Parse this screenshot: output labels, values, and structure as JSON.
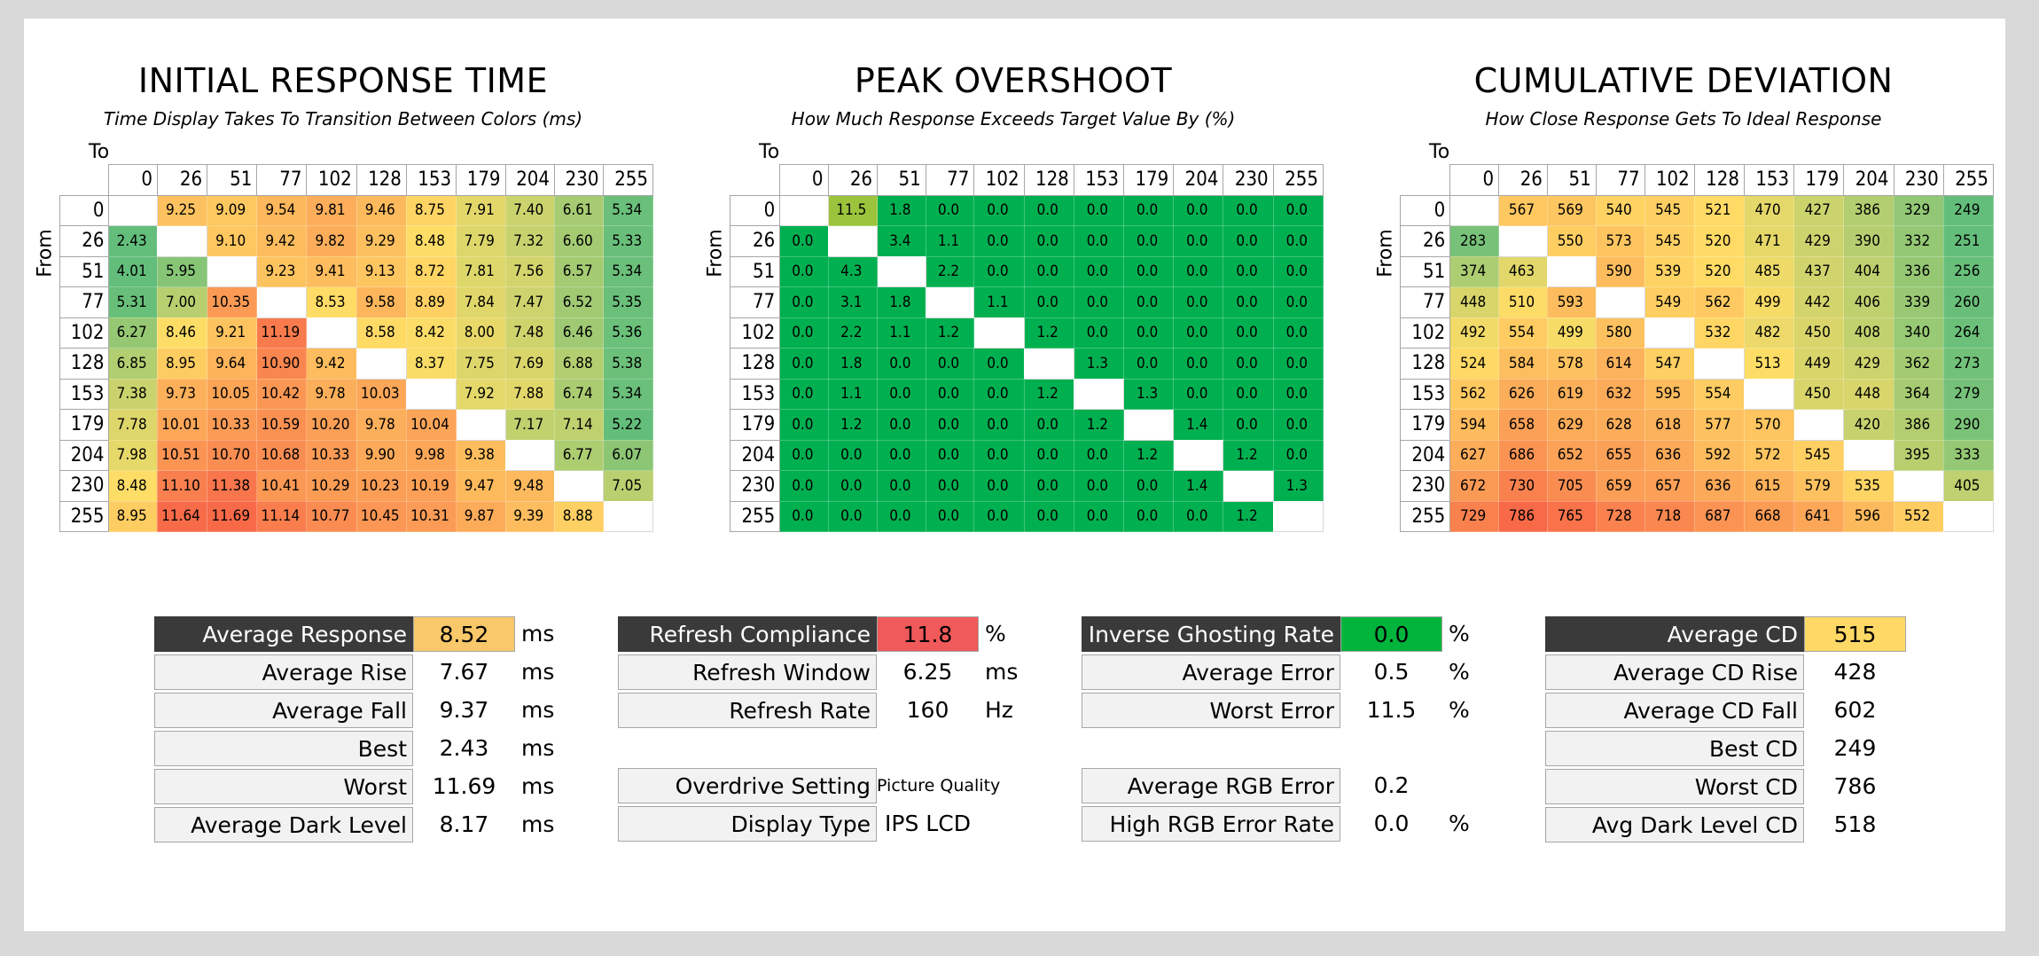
{
  "levels": [
    "0",
    "26",
    "51",
    "77",
    "102",
    "128",
    "153",
    "179",
    "204",
    "230",
    "255"
  ],
  "axis": {
    "to": "To",
    "from": "From"
  },
  "colors": {
    "dark_label": "#3a3a3a",
    "green": "#00b050",
    "good_green": "#00b43c",
    "red": "#f05a5a",
    "amber": "#ffd966"
  },
  "chart_data": [
    {
      "type": "heatmap",
      "title": "INITIAL RESPONSE TIME",
      "subtitle": "Time Display Takes To Transition Between Colors (ms)",
      "xlabel": "To",
      "ylabel": "From",
      "categories": [
        "0",
        "26",
        "51",
        "77",
        "102",
        "128",
        "153",
        "179",
        "204",
        "230",
        "255"
      ],
      "values": [
        [
          null,
          "9.25",
          "9.09",
          "9.54",
          "9.81",
          "9.46",
          "8.75",
          "7.91",
          "7.40",
          "6.61",
          "5.34"
        ],
        [
          "2.43",
          null,
          "9.10",
          "9.42",
          "9.82",
          "9.29",
          "8.48",
          "7.79",
          "7.32",
          "6.60",
          "5.33"
        ],
        [
          "4.01",
          "5.95",
          null,
          "9.23",
          "9.41",
          "9.13",
          "8.72",
          "7.81",
          "7.56",
          "6.57",
          "5.34"
        ],
        [
          "5.31",
          "7.00",
          "10.35",
          null,
          "8.53",
          "9.58",
          "8.89",
          "7.84",
          "7.47",
          "6.52",
          "5.35"
        ],
        [
          "6.27",
          "8.46",
          "9.21",
          "11.19",
          null,
          "8.58",
          "8.42",
          "8.00",
          "7.48",
          "6.46",
          "5.36"
        ],
        [
          "6.85",
          "8.95",
          "9.64",
          "10.90",
          "9.42",
          null,
          "8.37",
          "7.75",
          "7.69",
          "6.88",
          "5.38"
        ],
        [
          "7.38",
          "9.73",
          "10.05",
          "10.42",
          "9.78",
          "10.03",
          null,
          "7.92",
          "7.88",
          "6.74",
          "5.34"
        ],
        [
          "7.78",
          "10.01",
          "10.33",
          "10.59",
          "10.20",
          "9.78",
          "10.04",
          null,
          "7.17",
          "7.14",
          "5.22"
        ],
        [
          "7.98",
          "10.51",
          "10.70",
          "10.68",
          "10.33",
          "9.90",
          "9.98",
          "9.38",
          null,
          "6.77",
          "6.07"
        ],
        [
          "8.48",
          "11.10",
          "11.38",
          "10.41",
          "10.29",
          "10.23",
          "10.19",
          "9.47",
          "9.48",
          null,
          "7.05"
        ],
        [
          "8.95",
          "11.64",
          "11.69",
          "11.14",
          "10.77",
          "10.45",
          "10.31",
          "9.87",
          "9.39",
          "8.88",
          null
        ]
      ],
      "scale": {
        "min": 5.2,
        "mid": 8.5,
        "max": 11.7
      }
    },
    {
      "type": "heatmap",
      "title": "PEAK OVERSHOOT",
      "subtitle": "How Much Response Exceeds Target Value By (%)",
      "xlabel": "To",
      "ylabel": "From",
      "categories": [
        "0",
        "26",
        "51",
        "77",
        "102",
        "128",
        "153",
        "179",
        "204",
        "230",
        "255"
      ],
      "values": [
        [
          null,
          "11.5",
          "1.8",
          "0.0",
          "0.0",
          "0.0",
          "0.0",
          "0.0",
          "0.0",
          "0.0",
          "0.0"
        ],
        [
          "0.0",
          null,
          "3.4",
          "1.1",
          "0.0",
          "0.0",
          "0.0",
          "0.0",
          "0.0",
          "0.0",
          "0.0"
        ],
        [
          "0.0",
          "4.3",
          null,
          "2.2",
          "0.0",
          "0.0",
          "0.0",
          "0.0",
          "0.0",
          "0.0",
          "0.0"
        ],
        [
          "0.0",
          "3.1",
          "1.8",
          null,
          "1.1",
          "0.0",
          "0.0",
          "0.0",
          "0.0",
          "0.0",
          "0.0"
        ],
        [
          "0.0",
          "2.2",
          "1.1",
          "1.2",
          null,
          "1.2",
          "0.0",
          "0.0",
          "0.0",
          "0.0",
          "0.0"
        ],
        [
          "0.0",
          "1.8",
          "0.0",
          "0.0",
          "0.0",
          null,
          "1.3",
          "0.0",
          "0.0",
          "0.0",
          "0.0"
        ],
        [
          "0.0",
          "1.1",
          "0.0",
          "0.0",
          "0.0",
          "1.2",
          null,
          "1.3",
          "0.0",
          "0.0",
          "0.0"
        ],
        [
          "0.0",
          "1.2",
          "0.0",
          "0.0",
          "0.0",
          "0.0",
          "1.2",
          null,
          "1.4",
          "0.0",
          "0.0"
        ],
        [
          "0.0",
          "0.0",
          "0.0",
          "0.0",
          "0.0",
          "0.0",
          "0.0",
          "1.2",
          null,
          "1.2",
          "0.0"
        ],
        [
          "0.0",
          "0.0",
          "0.0",
          "0.0",
          "0.0",
          "0.0",
          "0.0",
          "0.0",
          "1.4",
          null,
          "1.3"
        ],
        [
          "0.0",
          "0.0",
          "0.0",
          "0.0",
          "0.0",
          "0.0",
          "0.0",
          "0.0",
          "0.0",
          "1.2",
          null
        ]
      ],
      "scale": {
        "threshold": 10
      }
    },
    {
      "type": "heatmap",
      "title": "CUMULATIVE DEVIATION",
      "subtitle": "How Close Response Gets To Ideal Response",
      "xlabel": "To",
      "ylabel": "From",
      "categories": [
        "0",
        "26",
        "51",
        "77",
        "102",
        "128",
        "153",
        "179",
        "204",
        "230",
        "255"
      ],
      "values": [
        [
          null,
          "567",
          "569",
          "540",
          "545",
          "521",
          "470",
          "427",
          "386",
          "329",
          "249"
        ],
        [
          "283",
          null,
          "550",
          "573",
          "545",
          "520",
          "471",
          "429",
          "390",
          "332",
          "251"
        ],
        [
          "374",
          "463",
          null,
          "590",
          "539",
          "520",
          "485",
          "437",
          "404",
          "336",
          "256"
        ],
        [
          "448",
          "510",
          "593",
          null,
          "549",
          "562",
          "499",
          "442",
          "406",
          "339",
          "260"
        ],
        [
          "492",
          "554",
          "499",
          "580",
          null,
          "532",
          "482",
          "450",
          "408",
          "340",
          "264"
        ],
        [
          "524",
          "584",
          "578",
          "614",
          "547",
          null,
          "513",
          "449",
          "429",
          "362",
          "273"
        ],
        [
          "562",
          "626",
          "619",
          "632",
          "595",
          "554",
          null,
          "450",
          "448",
          "364",
          "279"
        ],
        [
          "594",
          "658",
          "629",
          "628",
          "618",
          "577",
          "570",
          null,
          "420",
          "386",
          "290"
        ],
        [
          "627",
          "686",
          "652",
          "655",
          "636",
          "592",
          "572",
          "545",
          null,
          "395",
          "333"
        ],
        [
          "672",
          "730",
          "705",
          "659",
          "657",
          "636",
          "615",
          "579",
          "535",
          null,
          "405"
        ],
        [
          "729",
          "786",
          "765",
          "728",
          "718",
          "687",
          "668",
          "641",
          "596",
          "552",
          null
        ]
      ],
      "scale": {
        "min": 249,
        "mid": 515,
        "max": 786
      }
    }
  ],
  "stats": {
    "response": [
      {
        "label": "Average Response",
        "value": "8.52",
        "unit": "ms",
        "highlight": true
      },
      {
        "label": "Average Rise",
        "value": "7.67",
        "unit": "ms"
      },
      {
        "label": "Average Fall",
        "value": "9.37",
        "unit": "ms"
      },
      {
        "label": "Best",
        "value": "2.43",
        "unit": "ms"
      },
      {
        "label": "Worst",
        "value": "11.69",
        "unit": "ms"
      },
      {
        "label": "Average Dark Level",
        "value": "8.17",
        "unit": "ms"
      }
    ],
    "refresh": [
      {
        "label": "Refresh Compliance",
        "value": "11.8",
        "unit": "%",
        "highlight": true
      },
      {
        "label": "Refresh Window",
        "value": "6.25",
        "unit": "ms"
      },
      {
        "label": "Refresh Rate",
        "value": "160",
        "unit": "Hz"
      }
    ],
    "settings": [
      {
        "label": "Overdrive Setting",
        "value": "Picture Quality",
        "unit": ""
      },
      {
        "label": "Display Type",
        "value": "IPS LCD",
        "unit": ""
      }
    ],
    "overshoot": [
      {
        "label": "Inverse Ghosting Rate",
        "value": "0.0",
        "unit": "%",
        "highlight": true
      },
      {
        "label": "Average Error",
        "value": "0.5",
        "unit": "%"
      },
      {
        "label": "Worst Error",
        "value": "11.5",
        "unit": "%"
      }
    ],
    "rgb": [
      {
        "label": "Average RGB Error",
        "value": "0.2",
        "unit": ""
      },
      {
        "label": "High RGB Error Rate",
        "value": "0.0",
        "unit": "%"
      }
    ],
    "cd": [
      {
        "label": "Average CD",
        "value": "515",
        "unit": "",
        "highlight": true
      },
      {
        "label": "Average CD Rise",
        "value": "428",
        "unit": ""
      },
      {
        "label": "Average CD Fall",
        "value": "602",
        "unit": ""
      },
      {
        "label": "Best CD",
        "value": "249",
        "unit": ""
      },
      {
        "label": "Worst CD",
        "value": "786",
        "unit": ""
      },
      {
        "label": "Avg Dark Level CD",
        "value": "518",
        "unit": ""
      }
    ]
  }
}
